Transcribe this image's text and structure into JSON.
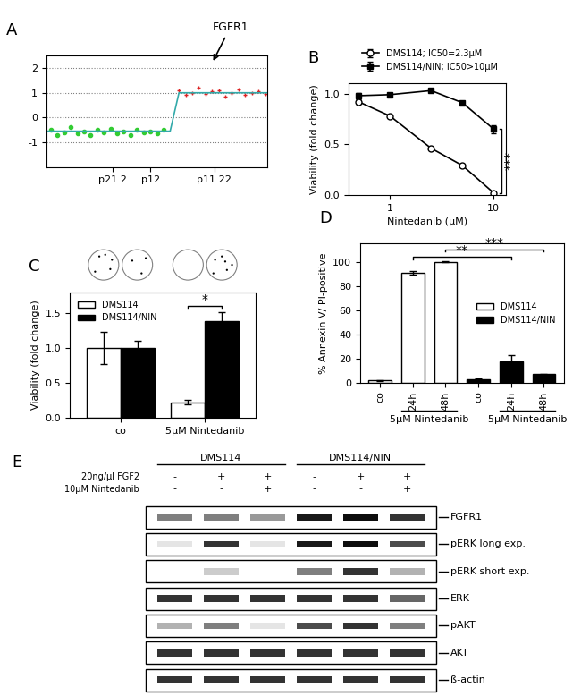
{
  "chart_data": [
    {
      "type": "scatter",
      "title": "A",
      "annotations": [
        {
          "text": "FGFR1",
          "x": 75,
          "y": 2.2
        }
      ],
      "xlim": [
        0,
        100
      ],
      "xticks": [
        {
          "value": 30,
          "label": "p21.2"
        },
        {
          "value": 47,
          "label": "p12"
        },
        {
          "value": 76,
          "label": "p11.22"
        }
      ],
      "ylim": [
        -2,
        2.5
      ],
      "yticks": [
        -1,
        0,
        1,
        2
      ],
      "grid": true,
      "series": [
        {
          "color": "#33cc33",
          "marker": "o",
          "x": [
            2,
            5,
            8,
            11,
            14,
            17,
            20,
            23,
            26,
            29,
            32,
            35,
            38,
            41,
            44,
            47,
            50,
            53
          ],
          "values": [
            -0.5,
            -0.7,
            -0.6,
            -0.4,
            -0.65,
            -0.55,
            -0.7,
            -0.5,
            -0.6,
            -0.45,
            -0.62,
            -0.58,
            -0.7,
            -0.5,
            -0.6,
            -0.55,
            -0.65,
            -0.5
          ]
        },
        {
          "color": "#dd2222",
          "marker": "+",
          "x": [
            60,
            63,
            66,
            69,
            72,
            75,
            78,
            81,
            84,
            87,
            90,
            93,
            96,
            99
          ],
          "values": [
            1.1,
            0.9,
            1.0,
            1.2,
            0.95,
            1.05,
            1.1,
            0.85,
            1.0,
            1.15,
            0.9,
            1.0,
            1.05,
            0.95
          ]
        },
        {
          "type": "line",
          "color": "#33aaaa",
          "line_style": "solid",
          "x": [
            0,
            56,
            60,
            100
          ],
          "values": [
            -0.55,
            -0.55,
            1.0,
            1.0
          ]
        }
      ]
    },
    {
      "type": "line",
      "title": "B",
      "x_label": "Nintedanib (µM)",
      "y_label": "Viability (fold change)",
      "log": "x",
      "xlim": [
        0.4,
        13
      ],
      "xticks": [
        1,
        10
      ],
      "ylim": [
        0,
        1.1
      ],
      "yticks": [
        {
          "value": 0,
          "label": "0.0"
        },
        {
          "value": 0.5,
          "label": "0.5"
        },
        {
          "value": 1,
          "label": "1.0"
        }
      ],
      "legend": "upper right",
      "x": [
        0.5,
        1,
        2.5,
        5,
        10
      ],
      "series": [
        {
          "name": "DMS114; IC50=2.3µM",
          "color": "#ffffff",
          "marker": "o",
          "line_style": "solid",
          "values": [
            0.92,
            0.78,
            0.46,
            0.29,
            0.02
          ],
          "errors": [
            0.02,
            0.01,
            0.01,
            0.01,
            0.01
          ]
        },
        {
          "name": "DMS114/NIN; IC50>10µM",
          "color": "#000000",
          "marker": "s",
          "line_style": "solid",
          "values": [
            0.98,
            0.99,
            1.03,
            0.91,
            0.65
          ],
          "errors": [
            0.03,
            0.01,
            0.01,
            0.01,
            0.04
          ]
        }
      ],
      "annotations": [
        {
          "text": "***",
          "x": 12,
          "y_span": [
            0.02,
            0.65
          ]
        }
      ]
    },
    {
      "type": "bar",
      "title": "C",
      "y_label": "Viability (fold change)",
      "categories": [
        "co",
        "5µM Nintedanib"
      ],
      "ylim": [
        0,
        1.8
      ],
      "yticks": [
        {
          "value": 0,
          "label": "0.0"
        },
        {
          "value": 0.5,
          "label": "0.5"
        },
        {
          "value": 1,
          "label": "1.0"
        },
        {
          "value": 1.5,
          "label": "1.5"
        }
      ],
      "legend": "upper left",
      "series": [
        {
          "name": "DMS114",
          "color": "#ffffff",
          "values": [
            1.0,
            0.22
          ],
          "errors": [
            0.23,
            0.03
          ]
        },
        {
          "name": "DMS114/NIN",
          "color": "#000000",
          "values": [
            1.0,
            1.39
          ],
          "errors": [
            0.1,
            0.13
          ]
        }
      ],
      "annotations": [
        {
          "text": "*",
          "category": 1,
          "y": 1.6
        }
      ]
    },
    {
      "type": "bar",
      "title": "D",
      "y_label": "% Annexin V/ PI-positive",
      "categories": [
        "co",
        "24h",
        "48h",
        "co",
        "24h",
        "48h"
      ],
      "ylim": [
        0,
        115
      ],
      "yticks": [
        0,
        20,
        40,
        60,
        80,
        100
      ],
      "legend": "center right",
      "series": [
        {
          "name": "DMS114",
          "color": "#ffffff",
          "values": [
            2,
            91,
            100,
            null,
            null,
            null
          ],
          "errors": [
            0.5,
            1.5,
            0.3,
            null,
            null,
            null
          ]
        },
        {
          "name": "DMS114/NIN",
          "color": "#000000",
          "values": [
            null,
            null,
            null,
            3,
            18,
            7
          ],
          "errors": [
            null,
            null,
            null,
            0.5,
            5,
            0.5
          ]
        }
      ],
      "group_labels": [
        {
          "text": "5µM Nintedanib",
          "span": [
            1,
            2
          ]
        },
        {
          "text": "5µM Nintedanib",
          "span": [
            4,
            5
          ]
        }
      ],
      "annotations": [
        {
          "text": "**",
          "between": [
            1,
            4
          ],
          "y": 104
        },
        {
          "text": "***",
          "between": [
            2,
            5
          ],
          "y": 110
        }
      ]
    }
  ],
  "blot": {
    "title": "E",
    "groups": [
      {
        "label": "DMS114",
        "lanes": [
          0,
          1,
          2
        ]
      },
      {
        "label": "DMS114/NIN",
        "lanes": [
          3,
          4,
          5
        ]
      }
    ],
    "conditions": [
      {
        "label": "20ng/µl FGF2",
        "marks": [
          "-",
          "+",
          "+",
          "-",
          "+",
          "+"
        ]
      },
      {
        "label": "10µM Nintedanib",
        "marks": [
          "-",
          "-",
          "+",
          "-",
          "-",
          "+"
        ]
      }
    ],
    "rows": [
      {
        "label": "FGFR1",
        "intensity": [
          0.5,
          0.5,
          0.4,
          0.9,
          0.95,
          0.8
        ]
      },
      {
        "label": "pERK long exp.",
        "intensity": [
          0.1,
          0.8,
          0.1,
          0.9,
          0.95,
          0.7
        ]
      },
      {
        "label": "pERK short exp.",
        "intensity": [
          0.0,
          0.2,
          0.0,
          0.5,
          0.8,
          0.3
        ]
      },
      {
        "label": "ERK",
        "intensity": [
          0.8,
          0.8,
          0.8,
          0.8,
          0.8,
          0.6
        ]
      },
      {
        "label": "pAKT",
        "intensity": [
          0.3,
          0.5,
          0.1,
          0.7,
          0.8,
          0.5
        ]
      },
      {
        "label": "AKT",
        "intensity": [
          0.8,
          0.8,
          0.8,
          0.8,
          0.8,
          0.8
        ]
      },
      {
        "label": "ß-actin",
        "intensity": [
          0.8,
          0.8,
          0.8,
          0.8,
          0.8,
          0.8
        ]
      }
    ]
  }
}
